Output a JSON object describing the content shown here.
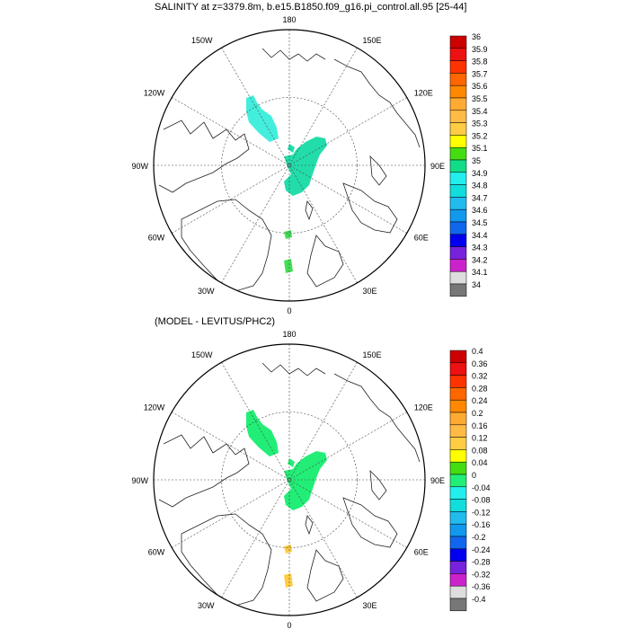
{
  "panels": [
    {
      "title": "SALINITY at z=3379.8m, b.e15.B1850.f09_g16.pi_control.all.95 [25-44]",
      "colorbar_labels": [
        "36",
        "35.9",
        "35.8",
        "35.7",
        "35.6",
        "35.5",
        "35.4",
        "35.3",
        "35.2",
        "35.1",
        "35",
        "34.9",
        "34.8",
        "34.7",
        "34.6",
        "34.5",
        "34.4",
        "34.3",
        "34.2",
        "34.1",
        "34"
      ],
      "colorbar_colors": [
        "#cc0000",
        "#ee1111",
        "#ff3300",
        "#ff6600",
        "#ff8800",
        "#ffaa33",
        "#ffbb44",
        "#ffcc44",
        "#ffff00",
        "#44dd11",
        "#11dd88",
        "#22eeee",
        "#11dddd",
        "#22bbee",
        "#1199ee",
        "#1166ee",
        "#0000ee",
        "#7722dd",
        "#cc22cc",
        "#dddddd",
        "#777777"
      ],
      "fields": [
        {
          "region": "eurasian-basin",
          "color": "#22ddaa"
        },
        {
          "region": "canada-basin",
          "color": "#44eedd"
        },
        {
          "region": "fram-strait",
          "color": "#44dd55"
        }
      ]
    },
    {
      "title": "(MODEL - LEVITUS/PHC2)",
      "colorbar_labels": [
        "0.4",
        "0.36",
        "0.32",
        "0.28",
        "0.24",
        "0.2",
        "0.16",
        "0.12",
        "0.08",
        "0.04",
        "0",
        "-0.04",
        "-0.08",
        "-0.12",
        "-0.16",
        "-0.2",
        "-0.24",
        "-0.28",
        "-0.32",
        "-0.36",
        "-0.4"
      ],
      "colorbar_colors": [
        "#cc0000",
        "#ee1111",
        "#ff3300",
        "#ff6600",
        "#ff8800",
        "#ffaa33",
        "#ffbb44",
        "#ffcc44",
        "#ffff00",
        "#44dd11",
        "#22ee77",
        "#22eeee",
        "#11dddd",
        "#22bbee",
        "#1199ee",
        "#1166ee",
        "#0000ee",
        "#7722dd",
        "#cc22cc",
        "#dddddd",
        "#777777"
      ],
      "fields": [
        {
          "region": "eurasian-basin",
          "color": "#22ee77"
        },
        {
          "region": "canada-basin",
          "color": "#22ee77"
        },
        {
          "region": "fram-strait",
          "color": "#ffcc44"
        }
      ]
    }
  ],
  "map_labels": {
    "top": "180",
    "bottom": "0",
    "left": "90W",
    "right": "90E",
    "upper_left": "150W",
    "upper_right": "150E",
    "mid_left_upper": "120W",
    "mid_right_upper": "120E",
    "mid_left_lower": "60W",
    "mid_right_lower": "60E",
    "lower_left": "30W",
    "lower_right": "30E"
  }
}
